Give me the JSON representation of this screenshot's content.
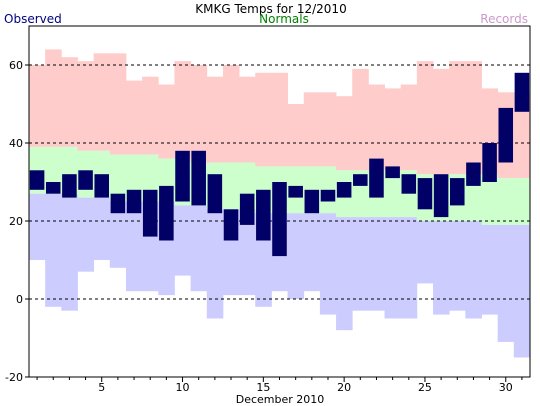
{
  "chart_data": {
    "type": "bar",
    "title": "KMKG Temps for 12/2010",
    "xlabel": "December 2010",
    "ylabel": "",
    "legend": [
      {
        "name": "Observed",
        "color": "#000080",
        "position": "top-left"
      },
      {
        "name": "Normals",
        "color": "#008000",
        "position": "top-center"
      },
      {
        "name": "Records",
        "color": "#cc99cc",
        "position": "top-right"
      }
    ],
    "colors": {
      "observed": "#000066",
      "record_band": "#ffcccc",
      "normal_band": "#ccffcc",
      "low_band": "#ccccff"
    },
    "ylim": [
      -20,
      70
    ],
    "yticks": [
      -20,
      0,
      20,
      40,
      60
    ],
    "xlim": [
      0.5,
      31.5
    ],
    "xticks": [
      5,
      10,
      15,
      20,
      25,
      30
    ],
    "grid": "dashed horizontal at y ticks",
    "days": [
      1,
      2,
      3,
      4,
      5,
      6,
      7,
      8,
      9,
      10,
      11,
      12,
      13,
      14,
      15,
      16,
      17,
      18,
      19,
      20,
      21,
      22,
      23,
      24,
      25,
      26,
      27,
      28,
      29,
      30,
      31
    ],
    "observed_high": [
      33,
      30,
      32,
      33,
      32,
      27,
      28,
      28,
      29,
      38,
      38,
      32,
      23,
      27,
      28,
      30,
      29,
      28,
      28,
      30,
      32,
      36,
      34,
      32,
      31,
      32,
      31,
      35,
      40,
      49,
      58
    ],
    "observed_low": [
      28,
      27,
      26,
      28,
      26,
      22,
      22,
      16,
      15,
      25,
      24,
      22,
      15,
      19,
      15,
      11,
      26,
      22,
      25,
      26,
      29,
      26,
      31,
      27,
      23,
      21,
      24,
      29,
      30,
      35,
      48
    ],
    "normal_high": [
      39,
      39,
      39,
      38,
      38,
      37,
      37,
      37,
      36,
      36,
      35,
      35,
      35,
      35,
      34,
      34,
      34,
      34,
      34,
      33,
      33,
      33,
      33,
      33,
      32,
      32,
      32,
      32,
      32,
      31,
      31
    ],
    "normal_low": [
      27,
      27,
      27,
      26,
      26,
      25,
      25,
      25,
      25,
      24,
      24,
      23,
      23,
      23,
      22,
      22,
      22,
      22,
      22,
      21,
      21,
      21,
      21,
      21,
      20,
      20,
      20,
      20,
      19,
      19,
      19
    ],
    "record_high": [
      60,
      64,
      62,
      61,
      63,
      63,
      56,
      57,
      55,
      61,
      60,
      57,
      60,
      57,
      58,
      58,
      50,
      53,
      53,
      52,
      59,
      55,
      54,
      55,
      61,
      59,
      61,
      61,
      54,
      53,
      53
    ],
    "record_low": [
      10,
      -2,
      -3,
      7,
      10,
      8,
      2,
      2,
      1,
      6,
      2,
      -5,
      1,
      1,
      -2,
      2,
      0,
      2,
      -4,
      -8,
      -3,
      -3,
      -5,
      -5,
      4,
      -4,
      -3,
      -5,
      -4,
      -11,
      -15
    ]
  }
}
